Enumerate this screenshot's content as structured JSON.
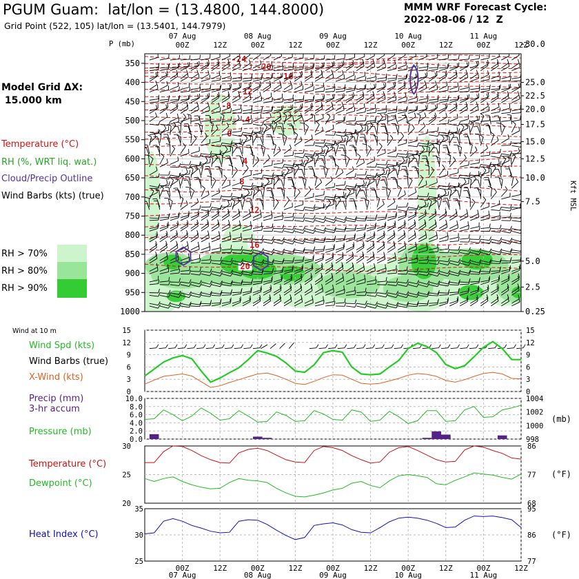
{
  "header": {
    "title": "PGUM Guam:  lat/lon = (13.4800, 144.8000)",
    "grid_point": "Grid Point (522, 105) lat/lon = (13.5401, 144.7979)",
    "cycle_line1": "MMM WRF Forecast Cycle:",
    "cycle_line2": "2022-08-06 / 12  Z",
    "model_grid_line1": "Model Grid ΔX:",
    "model_grid_line2": "15.000 km"
  },
  "legend": {
    "temperature": "Temperature (°C)",
    "rh": "RH (%, WRT liq. wat.)",
    "cloud": "Cloud/Precip Outline",
    "barbs": "Wind Barbs (kts) (true)",
    "rh70": "RH > 70%",
    "rh80": "RH > 80%",
    "rh90": "RH > 90%"
  },
  "colors": {
    "temp": "#dd1111",
    "rh70": "#ccf5cc",
    "rh80": "#99e599",
    "rh90": "#33cc33",
    "cloud": "#553399",
    "wind": "#22cc22",
    "xwind": "#e06020",
    "precip": "#552288",
    "pressure": "#22bb22",
    "templine": "#cc1111",
    "dew": "#22bb22",
    "heat": "#1111bb"
  },
  "time_axis": {
    "date_labels": [
      "07 Aug",
      "08 Aug",
      "09 Aug",
      "10 Aug",
      "11 Aug"
    ],
    "hour_labels": [
      "00Z",
      "12Z",
      "00Z",
      "12Z",
      "00Z",
      "12Z",
      "00Z",
      "12Z",
      "00Z",
      "12Z"
    ],
    "date_label_hours": [
      12,
      36,
      60,
      84,
      108
    ],
    "tick_hours": [
      12,
      24,
      36,
      48,
      60,
      72,
      84,
      96,
      108,
      120
    ],
    "range_hours": [
      0,
      120
    ]
  },
  "chart_data": [
    {
      "type": "contour",
      "id": "sounding",
      "y_label": "P (mb)",
      "pressure_levels": [
        350,
        400,
        450,
        500,
        550,
        600,
        650,
        700,
        750,
        800,
        850,
        900,
        950,
        1000
      ],
      "kft_labels": [
        "30.0",
        "25.0",
        "22.5",
        "20.0",
        "17.5",
        "15.0",
        "12.5",
        "10.0",
        "7.5",
        "5.0",
        "2.5",
        "0.25"
      ],
      "kft_pressures": [
        300,
        400,
        435,
        470,
        510,
        555,
        600,
        650,
        712,
        868,
        936,
        1000
      ],
      "right_label": "Kft MSL",
      "temp_isotherm_labels": [
        {
          "t": "-24",
          "h": 30,
          "p": 345
        },
        {
          "t": "-20",
          "h": 38,
          "p": 365
        },
        {
          "t": "-16",
          "h": 45,
          "p": 390
        },
        {
          "t": "-12",
          "h": 32,
          "p": 430
        },
        {
          "t": "-8",
          "h": 26,
          "p": 467
        },
        {
          "t": "-4",
          "h": 32,
          "p": 504
        },
        {
          "t": "0",
          "h": 27,
          "p": 540
        },
        {
          "t": "4",
          "h": 32,
          "p": 612
        },
        {
          "t": "8",
          "h": 31,
          "p": 665
        },
        {
          "t": "12",
          "h": 35,
          "p": 740
        },
        {
          "t": "16",
          "h": 35,
          "p": 831
        },
        {
          "t": "20",
          "h": 32,
          "p": 887
        }
      ]
    },
    {
      "type": "line",
      "id": "wind10m",
      "title": "Wind at 10 m",
      "ylim": [
        0,
        15
      ],
      "ticks": [
        0,
        3,
        6,
        9,
        12,
        15
      ],
      "legend": {
        "speed": "Wind Spd (kts)",
        "barbs": "Wind Barbs (true)",
        "xwind": "X-Wind (kts)"
      },
      "x": [
        0,
        3,
        6,
        9,
        12,
        15,
        18,
        21,
        24,
        27,
        30,
        33,
        36,
        39,
        42,
        45,
        48,
        51,
        54,
        57,
        60,
        63,
        66,
        69,
        72,
        75,
        78,
        81,
        84,
        87,
        90,
        93,
        96,
        99,
        102,
        105,
        108,
        111,
        114,
        117,
        120
      ],
      "series": [
        {
          "key": "speed",
          "values": [
            3.8,
            5.5,
            7.2,
            8.2,
            8.8,
            8.0,
            5.0,
            2.3,
            3.3,
            4.6,
            5.8,
            7.8,
            10.0,
            9.4,
            8.6,
            7.0,
            5.0,
            4.7,
            6.5,
            9.5,
            10.0,
            9.6,
            6.0,
            4.3,
            4.1,
            4.3,
            6.0,
            7.6,
            10.5,
            11.8,
            11.0,
            9.5,
            6.6,
            5.6,
            6.3,
            8.5,
            10.8,
            12.2,
            10.5,
            7.8,
            7.8
          ]
        },
        {
          "key": "xwind",
          "values": [
            1.8,
            2.8,
            3.7,
            4.0,
            4.3,
            3.8,
            2.4,
            1.0,
            1.4,
            2.2,
            2.9,
            3.6,
            4.3,
            4.5,
            3.9,
            3.0,
            2.0,
            1.7,
            2.5,
            3.4,
            4.1,
            4.0,
            3.0,
            2.0,
            1.8,
            2.0,
            2.6,
            3.2,
            4.0,
            4.4,
            4.2,
            3.7,
            2.7,
            2.3,
            2.9,
            3.7,
            4.4,
            4.7,
            4.3,
            3.2,
            3.1
          ]
        }
      ]
    },
    {
      "type": "line+bar",
      "id": "precip_pressure",
      "legend": {
        "precip": "Precip (mm)",
        "precip2": "3-hr accum",
        "pressure": "Pressure (mb)"
      },
      "y_left_ticks": [
        "0.0",
        "2.0",
        "4.0",
        "6.0",
        "8.0",
        "10.0"
      ],
      "y_left_lim": [
        0,
        10
      ],
      "y_right_ticks": [
        "998",
        "1000",
        "1002",
        "1004"
      ],
      "y_right_lim": [
        998,
        1004
      ],
      "right_unit": "(mb)",
      "precip": {
        "x": [
          3,
          36,
          39,
          90,
          93,
          96,
          96,
          114
        ],
        "values": [
          1.2,
          0.6,
          0.3,
          0.3,
          1.9,
          1.1,
          0.8,
          0.9
        ]
      },
      "pressure": {
        "x": [
          0,
          3,
          6,
          9,
          12,
          15,
          18,
          21,
          24,
          27,
          30,
          33,
          36,
          39,
          42,
          45,
          48,
          51,
          54,
          57,
          60,
          63,
          66,
          69,
          72,
          75,
          78,
          81,
          84,
          87,
          90,
          93,
          96,
          99,
          102,
          105,
          108,
          111,
          114,
          117,
          120
        ],
        "values": [
          1000.9,
          1001.0,
          1002.3,
          1001.6,
          1000.7,
          1001.4,
          1002.6,
          1001.8,
          1000.8,
          1001.0,
          1002.2,
          1001.4,
          1000.5,
          1000.6,
          1002.0,
          1001.5,
          1000.6,
          1000.7,
          1002.2,
          1001.7,
          1000.9,
          1000.8,
          1002.3,
          1002.0,
          1000.6,
          1000.8,
          1002.1,
          1001.3,
          1000.3,
          1000.7,
          1002.2,
          1002.2,
          1000.6,
          1000.7,
          1002.3,
          1002.8,
          1001.2,
          1001.3,
          1002.3,
          1002.6,
          1003.0
        ]
      }
    },
    {
      "type": "line",
      "id": "temp_dew",
      "legend": {
        "temp": "Temperature (°C)",
        "dew": "Dewpoint (°C)"
      },
      "y_left_ticks": [
        "20",
        "25",
        "30"
      ],
      "ylim": [
        20,
        30
      ],
      "y_right_ticks": [
        "68",
        "77",
        "86"
      ],
      "right_unit": "(°F)",
      "x": [
        0,
        3,
        6,
        9,
        12,
        15,
        18,
        21,
        24,
        27,
        30,
        33,
        36,
        39,
        42,
        45,
        48,
        51,
        54,
        57,
        60,
        63,
        66,
        69,
        72,
        75,
        78,
        81,
        84,
        87,
        90,
        93,
        96,
        99,
        102,
        105,
        108,
        111,
        114,
        117,
        120
      ],
      "series": [
        {
          "key": "temp",
          "values": [
            27.1,
            27.1,
            29.0,
            30.0,
            29.9,
            29.2,
            28.3,
            27.6,
            27.1,
            27.0,
            28.8,
            29.4,
            29.6,
            29.2,
            28.4,
            27.6,
            27.2,
            27.1,
            29.2,
            29.9,
            29.7,
            29.2,
            28.3,
            27.6,
            27.0,
            27.2,
            28.9,
            29.7,
            29.9,
            29.2,
            28.4,
            27.6,
            27.2,
            27.3,
            29.3,
            30.0,
            29.8,
            29.2,
            28.7,
            27.9,
            27.7
          ]
        },
        {
          "key": "dew",
          "values": [
            24.3,
            23.8,
            24.3,
            24.6,
            23.8,
            23.2,
            22.8,
            22.5,
            22.6,
            23.6,
            24.3,
            24.0,
            23.9,
            23.6,
            22.6,
            21.8,
            21.2,
            21.1,
            21.4,
            21.8,
            22.3,
            22.6,
            23.5,
            23.8,
            23.1,
            22.7,
            23.9,
            24.8,
            25.0,
            24.8,
            24.5,
            23.4,
            23.2,
            24.0,
            24.6,
            25.3,
            25.1,
            24.9,
            24.5,
            24.2,
            25.1
          ]
        }
      ]
    },
    {
      "type": "line",
      "id": "heat_index",
      "legend": {
        "heat": "Heat Index (°C)"
      },
      "y_left_ticks": [
        "25",
        "30",
        "35"
      ],
      "ylim": [
        25,
        35
      ],
      "y_right_ticks": [
        "77",
        "86",
        "95"
      ],
      "right_unit": "(°F)",
      "x": [
        0,
        3,
        6,
        9,
        12,
        15,
        18,
        21,
        24,
        27,
        30,
        33,
        36,
        39,
        42,
        45,
        48,
        51,
        54,
        57,
        60,
        63,
        66,
        69,
        72,
        75,
        78,
        81,
        84,
        87,
        90,
        93,
        96,
        99,
        102,
        105,
        108,
        111,
        114,
        117,
        120
      ],
      "series": [
        {
          "key": "heat",
          "values": [
            30.2,
            30.4,
            32.6,
            33.1,
            32.6,
            31.8,
            31.3,
            30.7,
            30.4,
            30.5,
            32.6,
            32.9,
            32.8,
            32.0,
            30.9,
            29.9,
            29.1,
            29.5,
            31.8,
            32.1,
            32.3,
            31.9,
            31.0,
            30.5,
            30.4,
            31.4,
            32.5,
            33.2,
            33.4,
            33.2,
            32.8,
            32.2,
            31.4,
            31.5,
            32.8,
            33.6,
            33.5,
            33.6,
            33.3,
            32.9,
            31.4
          ]
        }
      ]
    }
  ]
}
